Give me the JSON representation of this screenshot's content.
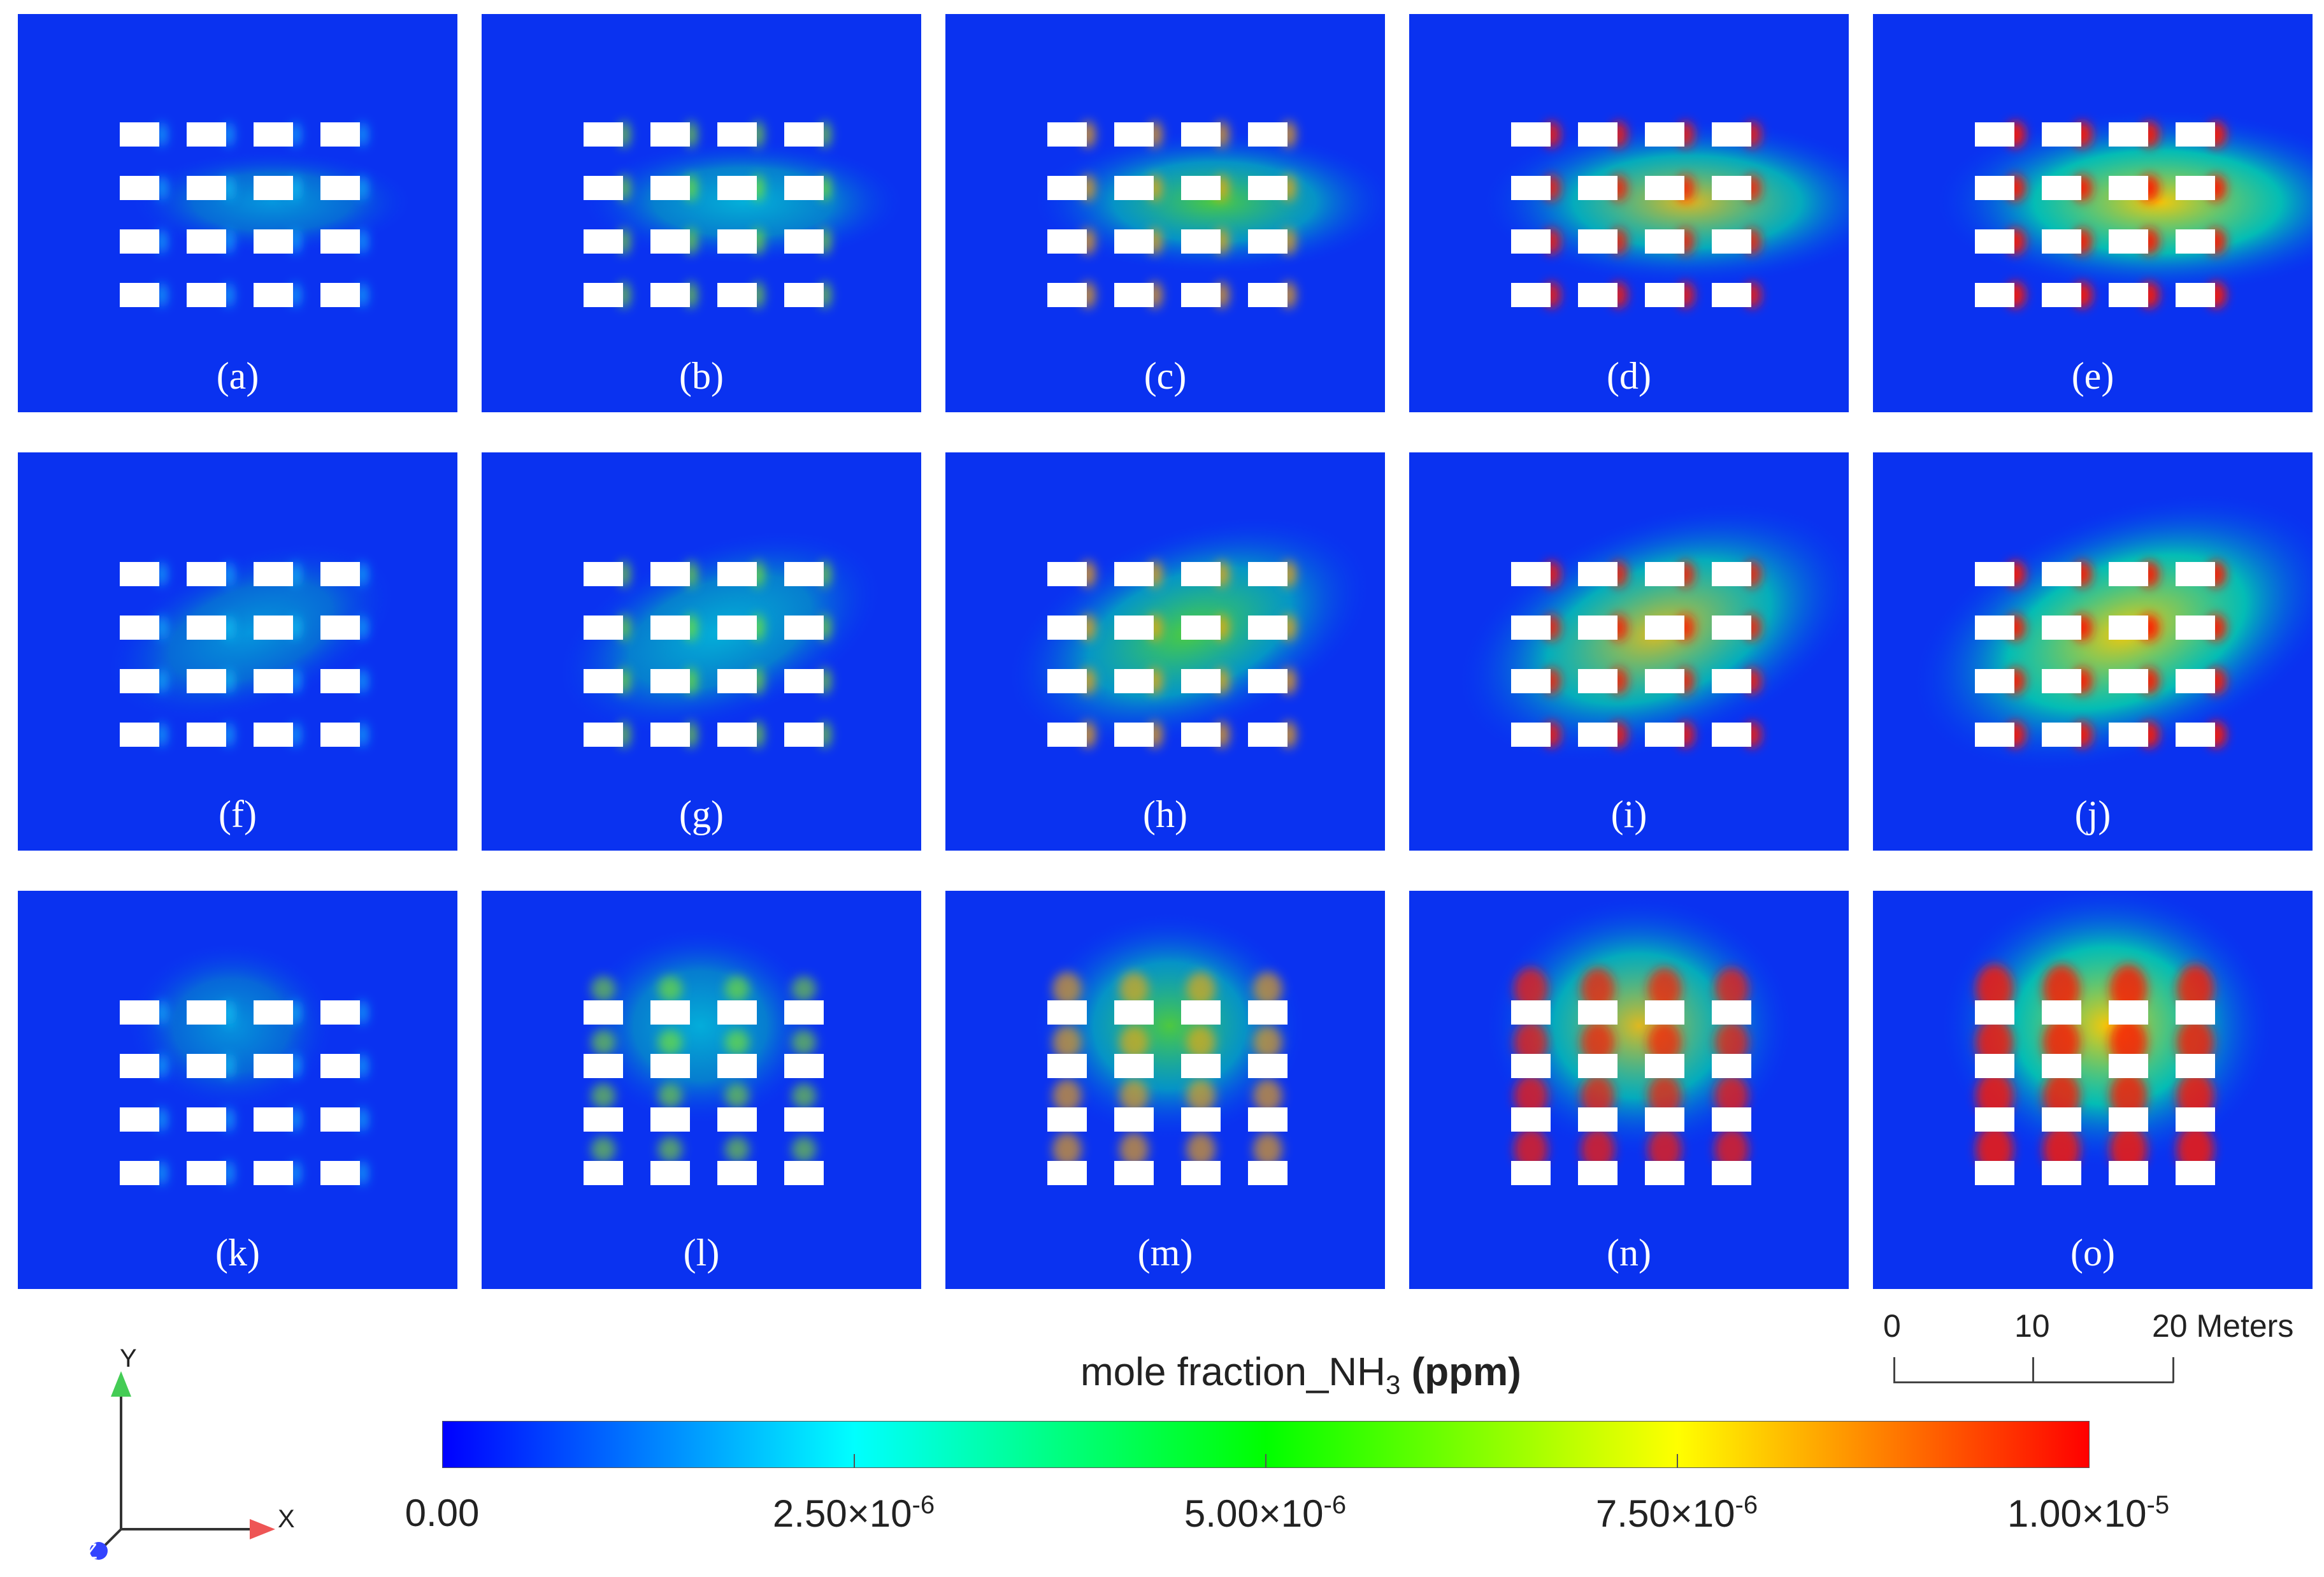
{
  "panels": [
    {
      "label": "(a)",
      "level": 0.15,
      "wind": "x"
    },
    {
      "label": "(b)",
      "level": 0.35,
      "wind": "x"
    },
    {
      "label": "(c)",
      "level": 0.55,
      "wind": "x"
    },
    {
      "label": "(d)",
      "level": 0.78,
      "wind": "x"
    },
    {
      "label": "(e)",
      "level": 0.95,
      "wind": "x"
    },
    {
      "label": "(f)",
      "level": 0.15,
      "wind": "diagonal"
    },
    {
      "label": "(g)",
      "level": 0.35,
      "wind": "diagonal"
    },
    {
      "label": "(h)",
      "level": 0.58,
      "wind": "diagonal"
    },
    {
      "label": "(i)",
      "level": 0.8,
      "wind": "diagonal"
    },
    {
      "label": "(j)",
      "level": 0.95,
      "wind": "diagonal"
    },
    {
      "label": "(k)",
      "level": 0.12,
      "wind": "y"
    },
    {
      "label": "(l)",
      "level": 0.33,
      "wind": "y"
    },
    {
      "label": "(m)",
      "level": 0.55,
      "wind": "y"
    },
    {
      "label": "(n)",
      "level": 0.78,
      "wind": "y"
    },
    {
      "label": "(o)",
      "level": 0.95,
      "wind": "y"
    }
  ],
  "colorbar": {
    "title": "mole fraction_NH",
    "title_sub": "3",
    "title_unit": "(ppm)",
    "ticks": [
      {
        "mantissa": "0.00",
        "exp": ""
      },
      {
        "mantissa": "2.50×10",
        "exp": "-6"
      },
      {
        "mantissa": "5.00×10",
        "exp": "-6"
      },
      {
        "mantissa": "7.50×10",
        "exp": "-6"
      },
      {
        "mantissa": "1.00×10",
        "exp": "-5"
      }
    ],
    "colors": [
      "#0000ff",
      "#00ffff",
      "#00ff00",
      "#ffff00",
      "#ff0000"
    ]
  },
  "scale_bar": {
    "ticks": [
      "0",
      "10",
      "20 Meters"
    ]
  },
  "axes": {
    "y_label": "Y",
    "x_label": "X",
    "z_label": "Z",
    "y_color": "#44cc55",
    "x_color": "#ee5555",
    "z_color": "#3344ff"
  }
}
